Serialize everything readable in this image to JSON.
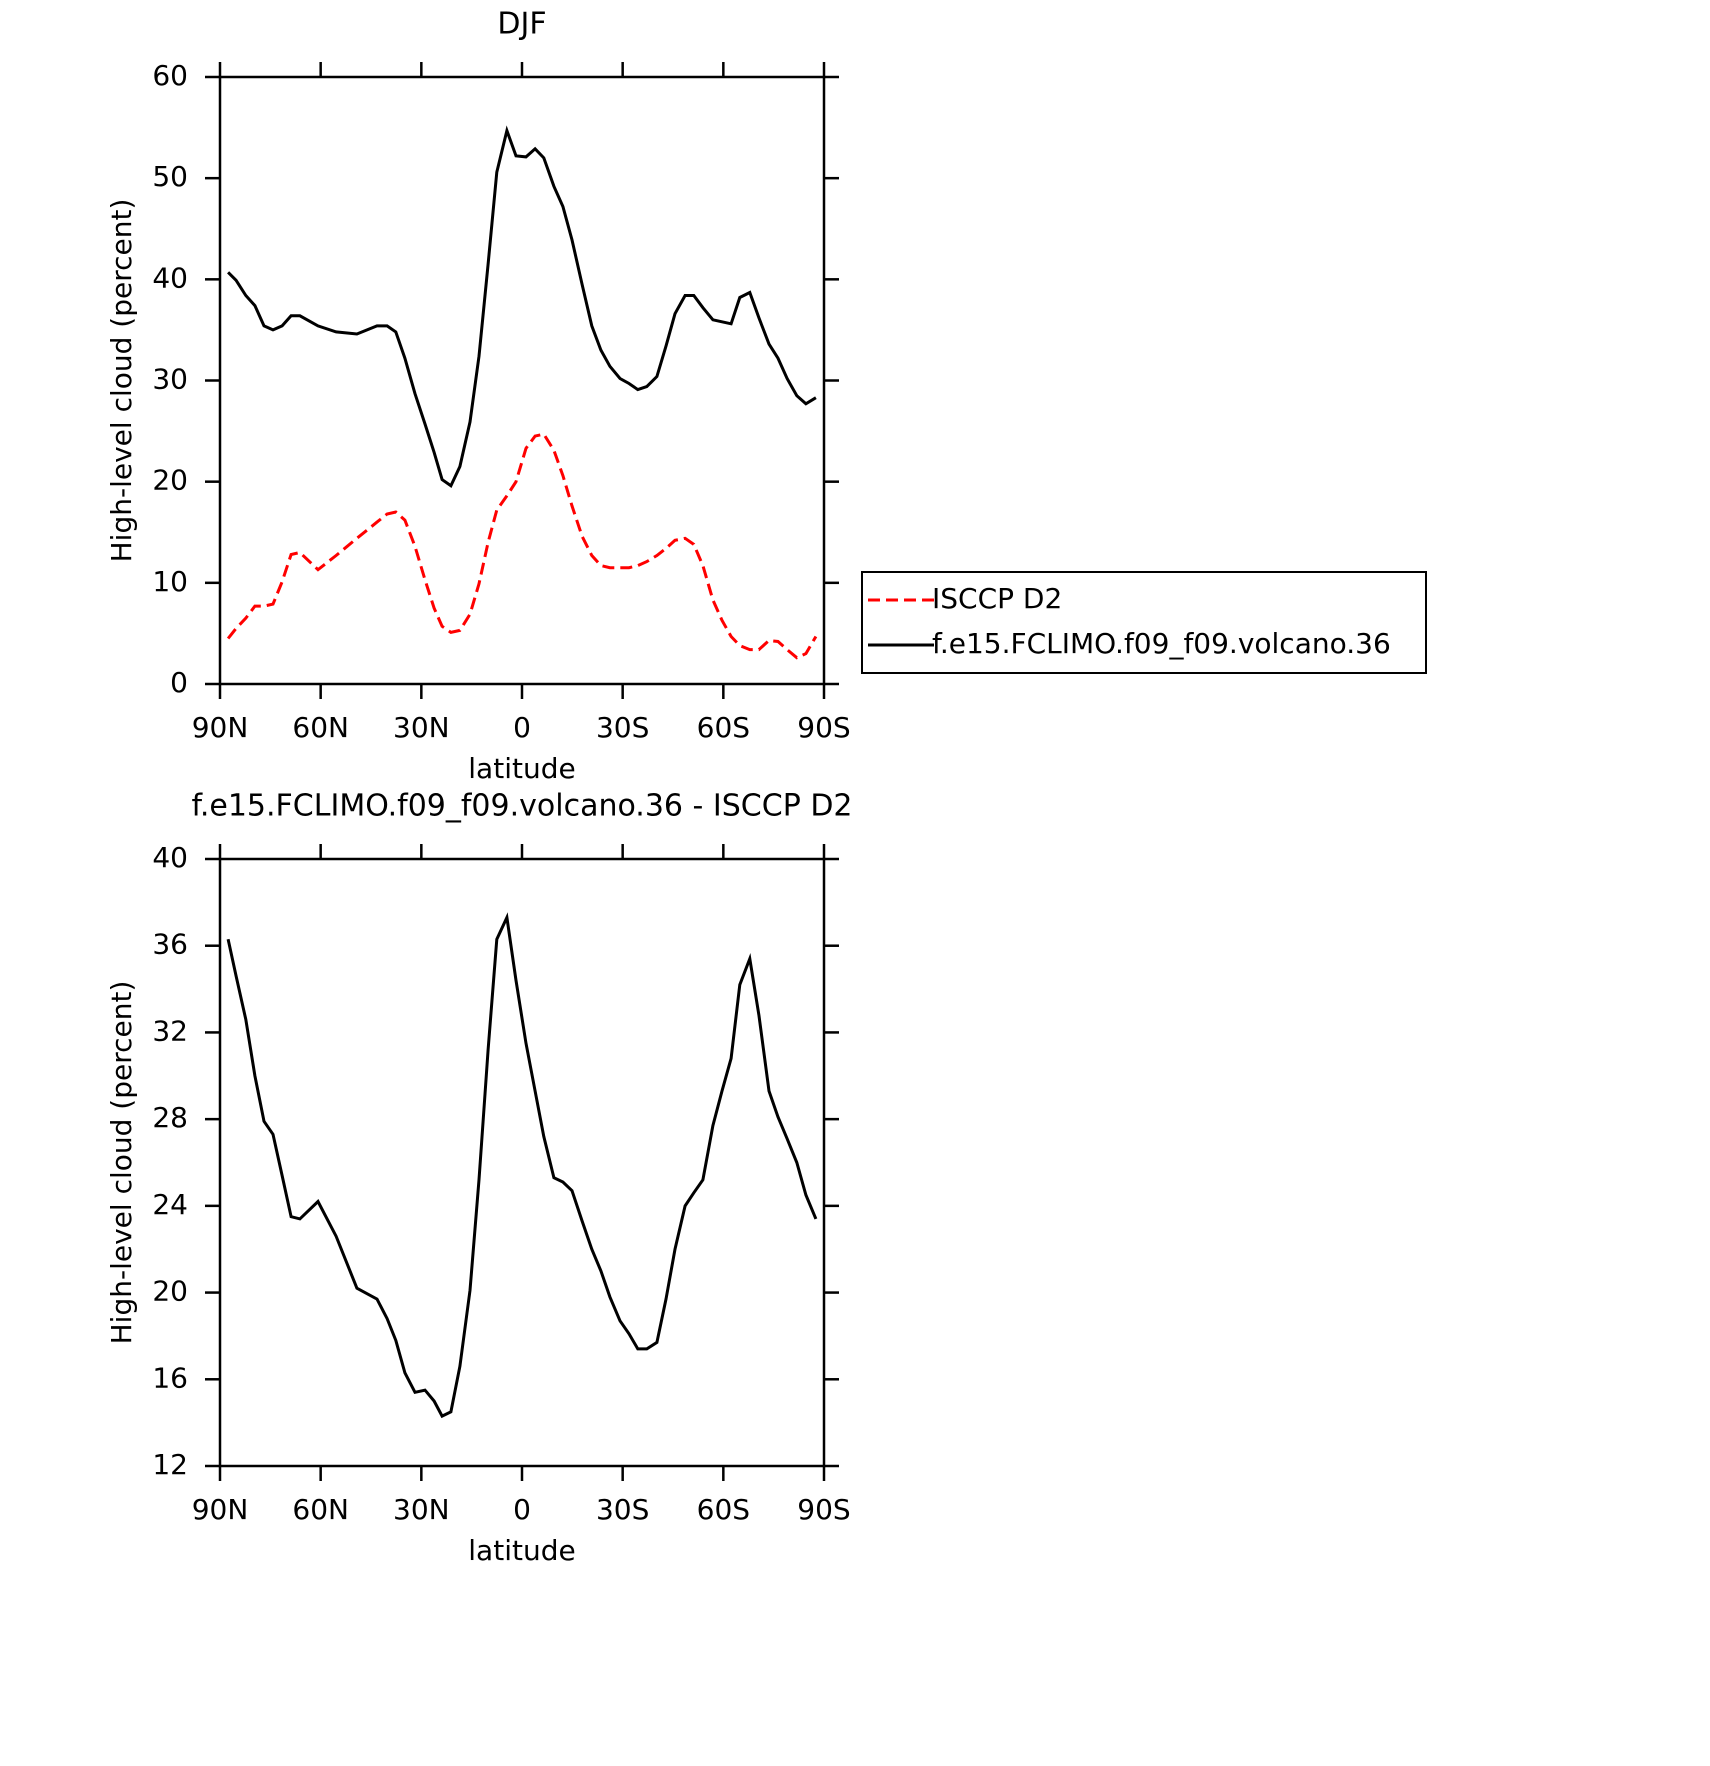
{
  "chart_data": [
    {
      "type": "line",
      "title": "DJF",
      "x_label": "latitude",
      "y_label": "High-level cloud (percent)",
      "x": [
        87.6,
        85.2,
        82.3,
        79.6,
        76.9,
        74.2,
        71.5,
        68.8,
        66.2,
        60.8,
        55.4,
        49.2,
        43.2,
        40.2,
        37.6,
        34.9,
        31.9,
        28.9,
        26.2,
        23.8,
        21.2,
        18.5,
        15.5,
        12.8,
        10.1,
        7.5,
        4.5,
        1.8,
        -1.2,
        -3.9,
        -6.5,
        -9.5,
        -12.2,
        -14.9,
        -17.9,
        -20.8,
        -23.5,
        -26.2,
        -29.2,
        -31.9,
        -34.5,
        -37.2,
        -40.2,
        -42.9,
        -45.6,
        -48.6,
        -51.2,
        -53.9,
        -56.9,
        -59.6,
        -62.3,
        -64.9,
        -67.9,
        -70.6,
        -73.6,
        -76.3,
        -79.0,
        -81.9,
        -84.6,
        -87.6
      ],
      "series": [
        {
          "name": "ISCCP D2",
          "color": "#ff0000",
          "dashed": true,
          "values": [
            4.5,
            5.5,
            6.5,
            7.7,
            7.7,
            7.9,
            10.1,
            12.8,
            13.0,
            11.3,
            12.7,
            14.4,
            16.0,
            16.8,
            17.0,
            16.2,
            13.6,
            10.3,
            7.5,
            5.7,
            5.1,
            5.3,
            6.9,
            9.9,
            14.0,
            17.2,
            18.6,
            20.0,
            23.3,
            24.5,
            24.7,
            23.1,
            20.6,
            17.6,
            14.6,
            12.7,
            11.7,
            11.5,
            11.5,
            11.5,
            11.7,
            12.1,
            12.7,
            13.4,
            14.2,
            14.4,
            13.8,
            11.7,
            8.3,
            6.3,
            4.7,
            3.8,
            3.4,
            3.4,
            4.3,
            4.2,
            3.4,
            2.6,
            3.0,
            4.7
          ]
        },
        {
          "name": "f.e15.FCLIMO.f09_f09.volcano.36",
          "color": "#000000",
          "dashed": false,
          "values": [
            40.7,
            39.9,
            38.4,
            37.4,
            35.4,
            35.0,
            35.4,
            36.4,
            36.4,
            35.4,
            34.8,
            34.6,
            35.4,
            35.4,
            34.8,
            32.2,
            28.7,
            25.7,
            22.9,
            20.2,
            19.6,
            21.5,
            25.9,
            32.4,
            41.5,
            50.6,
            54.7,
            52.2,
            52.1,
            52.9,
            52.0,
            49.2,
            47.2,
            43.9,
            39.5,
            35.4,
            33.0,
            31.4,
            30.2,
            29.7,
            29.1,
            29.4,
            30.4,
            33.4,
            36.6,
            38.4,
            38.4,
            37.2,
            36.0,
            35.8,
            35.6,
            38.2,
            38.7,
            36.2,
            33.6,
            32.2,
            30.2,
            28.5,
            27.7,
            28.3
          ]
        }
      ],
      "xlim": [
        90,
        -90
      ],
      "xticks": [
        {
          "value": 90,
          "label": "90N"
        },
        {
          "value": 60,
          "label": "60N"
        },
        {
          "value": 30,
          "label": "30N"
        },
        0,
        {
          "value": -30,
          "label": "30S"
        },
        {
          "value": -60,
          "label": "60S"
        },
        {
          "value": -90,
          "label": "90S"
        }
      ],
      "ylim": [
        0,
        60
      ],
      "yticks": [
        0,
        10,
        20,
        30,
        40,
        50,
        60
      ],
      "legend": "right"
    },
    {
      "type": "line",
      "title": "f.e15.FCLIMO.f09_f09.volcano.36 - ISCCP D2",
      "x_label": "latitude",
      "y_label": "High-level cloud (percent)",
      "x": [
        87.6,
        85.2,
        82.3,
        79.6,
        76.9,
        74.2,
        71.5,
        68.8,
        66.2,
        60.8,
        55.4,
        49.2,
        43.2,
        40.2,
        37.6,
        34.9,
        31.9,
        28.9,
        26.2,
        23.8,
        21.2,
        18.5,
        15.5,
        12.8,
        10.1,
        7.5,
        4.5,
        1.8,
        -1.2,
        -3.9,
        -6.5,
        -9.5,
        -12.2,
        -14.9,
        -17.9,
        -20.8,
        -23.5,
        -26.2,
        -29.2,
        -31.9,
        -34.5,
        -37.2,
        -40.2,
        -42.9,
        -45.6,
        -48.6,
        -51.2,
        -53.9,
        -56.9,
        -59.6,
        -62.3,
        -64.9,
        -67.9,
        -70.6,
        -73.6,
        -76.3,
        -79.0,
        -81.9,
        -84.6,
        -87.6
      ],
      "series": [
        {
          "color": "#000000",
          "dashed": false,
          "values": [
            36.3,
            34.6,
            32.6,
            30.0,
            27.9,
            27.3,
            25.4,
            23.5,
            23.4,
            24.2,
            22.6,
            20.2,
            19.7,
            18.8,
            17.8,
            16.3,
            15.4,
            15.5,
            15.0,
            14.3,
            14.5,
            16.6,
            20.1,
            25.2,
            31.2,
            36.3,
            37.3,
            34.4,
            31.5,
            29.3,
            27.2,
            25.3,
            25.1,
            24.7,
            23.3,
            22.0,
            21.0,
            19.8,
            18.7,
            18.1,
            17.4,
            17.4,
            17.7,
            19.7,
            22.0,
            24.0,
            24.6,
            25.2,
            27.7,
            29.3,
            30.8,
            34.2,
            35.4,
            32.8,
            29.3,
            28.1,
            27.1,
            26.0,
            24.5,
            23.4
          ]
        }
      ],
      "xlim": [
        90,
        -90
      ],
      "xticks": [
        {
          "value": 90,
          "label": "90N"
        },
        {
          "value": 60,
          "label": "60N"
        },
        {
          "value": 30,
          "label": "30N"
        },
        0,
        {
          "value": -30,
          "label": "30S"
        },
        {
          "value": -60,
          "label": "60S"
        },
        {
          "value": -90,
          "label": "90S"
        }
      ],
      "ylim": [
        12,
        40
      ],
      "yticks": [
        12,
        16,
        20,
        24,
        28,
        32,
        36,
        40
      ]
    }
  ]
}
